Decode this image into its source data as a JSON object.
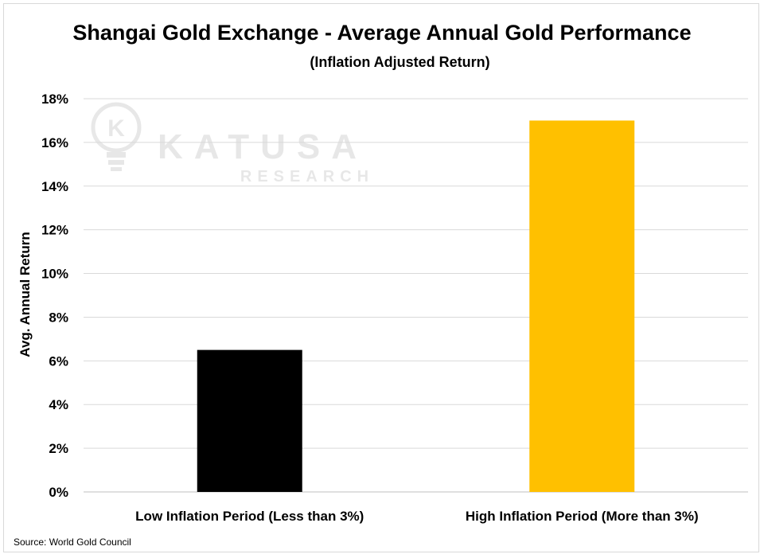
{
  "chart_data": {
    "type": "bar",
    "title": "Shangai Gold Exchange - Average Annual Gold Performance",
    "subtitle": "(Inflation Adjusted Return)",
    "categories": [
      "Low Inflation Period (Less than 3%)",
      "High Inflation Period (More than 3%)"
    ],
    "values": [
      6.5,
      17.0
    ],
    "colors": [
      "#000000",
      "#FFC000"
    ],
    "ylabel": "Avg. Annual Return",
    "xlabel": "",
    "ylim": [
      0,
      18
    ],
    "yticks": [
      "0%",
      "2%",
      "4%",
      "6%",
      "8%",
      "10%",
      "12%",
      "14%",
      "16%",
      "18%"
    ],
    "grid": true,
    "source": "Source: World Gold Council"
  },
  "watermark": {
    "brand": "KATUSA",
    "sub": "RESEARCH",
    "logo_letter": "K"
  }
}
